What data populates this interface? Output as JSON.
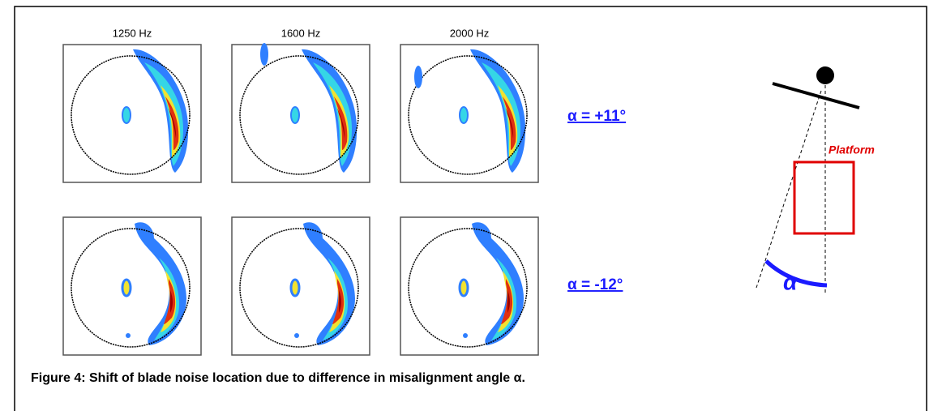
{
  "figure": {
    "frequencies": [
      "1250 Hz",
      "1600 Hz",
      "2000 Hz"
    ],
    "row_labels": [
      "α = +11°",
      "α = -12°"
    ],
    "diagram": {
      "platform_label": "Platform",
      "angle_label": "α"
    },
    "caption": "Figure 4: Shift of blade noise location due to difference in misalignment angle α."
  }
}
